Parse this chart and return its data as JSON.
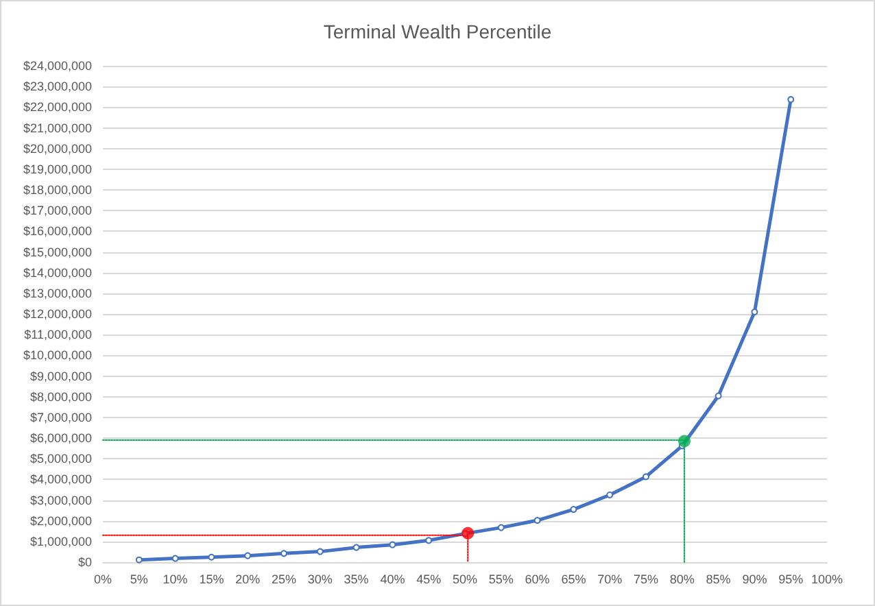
{
  "chart_data": {
    "type": "line",
    "title": "Terminal Wealth Percentile",
    "x": [
      5,
      10,
      15,
      20,
      25,
      30,
      35,
      40,
      45,
      50,
      55,
      60,
      65,
      70,
      75,
      80,
      85,
      90,
      95
    ],
    "series": [
      {
        "color": "#4472c4",
        "marker": "circle",
        "values": [
          110000,
          180000,
          240000,
          310000,
          420000,
          510000,
          710000,
          840000,
          1050000,
          1380000,
          1670000,
          2020000,
          2550000,
          3250000,
          4130000,
          5620000,
          8040000,
          12100000,
          22370000
        ]
      },
      {
        "type": "line",
        "color": "#ff0000",
        "marker": "none",
        "line_style": "dotted",
        "x": [
          0,
          50.4,
          50.4
        ],
        "values": [
          1300000,
          1300000,
          0
        ]
      },
      {
        "type": "line",
        "color": "#00b050",
        "marker": "none",
        "line_style": "dotted",
        "x": [
          0,
          80.3,
          80.3
        ],
        "values": [
          5900000,
          5900000,
          0
        ]
      },
      {
        "type": "scatter",
        "color": "#ff0000",
        "marker": "circle",
        "x": [
          50.4
        ],
        "values": [
          1400000
        ]
      },
      {
        "type": "scatter",
        "color": "#00b050",
        "marker": "circle",
        "x": [
          80.3
        ],
        "values": [
          5850000
        ]
      }
    ],
    "xlim": [
      0,
      100
    ],
    "xticks": [
      {
        "value": 0,
        "label": "0%"
      },
      {
        "value": 5,
        "label": "5%"
      },
      {
        "value": 10,
        "label": "10%"
      },
      {
        "value": 15,
        "label": "15%"
      },
      {
        "value": 20,
        "label": "20%"
      },
      {
        "value": 25,
        "label": "25%"
      },
      {
        "value": 30,
        "label": "30%"
      },
      {
        "value": 35,
        "label": "35%"
      },
      {
        "value": 40,
        "label": "40%"
      },
      {
        "value": 45,
        "label": "45%"
      },
      {
        "value": 50,
        "label": "50%"
      },
      {
        "value": 55,
        "label": "55%"
      },
      {
        "value": 60,
        "label": "60%"
      },
      {
        "value": 65,
        "label": "65%"
      },
      {
        "value": 70,
        "label": "70%"
      },
      {
        "value": 75,
        "label": "75%"
      },
      {
        "value": 80,
        "label": "80%"
      },
      {
        "value": 85,
        "label": "85%"
      },
      {
        "value": 90,
        "label": "90%"
      },
      {
        "value": 95,
        "label": "95%"
      },
      {
        "value": 100,
        "label": "100%"
      }
    ],
    "ylim": [
      0,
      24000000
    ],
    "yticks": [
      {
        "value": 0,
        "label": "$0"
      },
      {
        "value": 1000000,
        "label": "$1,000,000"
      },
      {
        "value": 2000000,
        "label": "$2,000,000"
      },
      {
        "value": 3000000,
        "label": "$3,000,000"
      },
      {
        "value": 4000000,
        "label": "$4,000,000"
      },
      {
        "value": 5000000,
        "label": "$5,000,000"
      },
      {
        "value": 6000000,
        "label": "$6,000,000"
      },
      {
        "value": 7000000,
        "label": "$7,000,000"
      },
      {
        "value": 8000000,
        "label": "$8,000,000"
      },
      {
        "value": 9000000,
        "label": "$9,000,000"
      },
      {
        "value": 10000000,
        "label": "$10,000,000"
      },
      {
        "value": 11000000,
        "label": "$11,000,000"
      },
      {
        "value": 12000000,
        "label": "$12,000,000"
      },
      {
        "value": 13000000,
        "label": "$13,000,000"
      },
      {
        "value": 14000000,
        "label": "$14,000,000"
      },
      {
        "value": 15000000,
        "label": "$15,000,000"
      },
      {
        "value": 16000000,
        "label": "$16,000,000"
      },
      {
        "value": 17000000,
        "label": "$17,000,000"
      },
      {
        "value": 18000000,
        "label": "$18,000,000"
      },
      {
        "value": 19000000,
        "label": "$19,000,000"
      },
      {
        "value": 20000000,
        "label": "$20,000,000"
      },
      {
        "value": 21000000,
        "label": "$21,000,000"
      },
      {
        "value": 22000000,
        "label": "$22,000,000"
      },
      {
        "value": 23000000,
        "label": "$23,000,000"
      },
      {
        "value": 24000000,
        "label": "$24,000,000"
      }
    ],
    "grid": "y"
  }
}
